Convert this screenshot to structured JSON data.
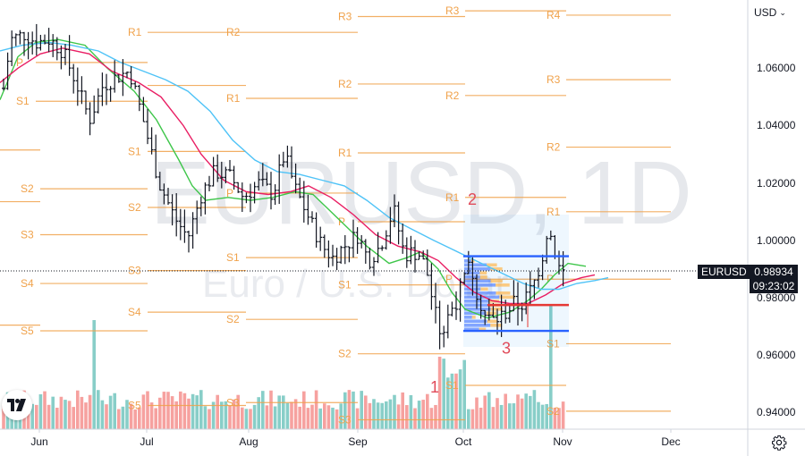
{
  "toolbar": {
    "currency": "USD"
  },
  "watermark": {
    "symbol": "EURUSD, 1D",
    "description": "Euro / U.S. Dollar"
  },
  "badges": {
    "symbol": "EURUSD",
    "last_price": "0.98934",
    "countdown": "09:23:02"
  },
  "colors": {
    "pivot": "#f0a24b",
    "bull": "#26a69a",
    "bear": "#ef5350",
    "ma_fast": "#3ec64a",
    "ma_mid": "#e91e63",
    "ma_slow": "#4fc3f7",
    "wave": "#e04b5a",
    "box_blue": "#2962ff",
    "box_red": "#e53935"
  },
  "icons": {
    "settings": "gear-icon",
    "logo": "tradingview-logo-icon",
    "currency_menu": "chevron-down-icon"
  },
  "chart_data": {
    "type": "candlestick",
    "symbol": "EURUSD",
    "interval": "1D",
    "ylim": [
      0.9325,
      1.0805
    ],
    "y_ticks": [
      "1.06000",
      "1.04000",
      "1.02000",
      "1.00000",
      "0.98000",
      "0.96000",
      "0.94000"
    ],
    "x_ticks": [
      "Jun",
      "Jul",
      "Aug",
      "Sep",
      "Oct",
      "Nov",
      "Dec"
    ],
    "last_price": 0.98934,
    "series": [
      {
        "name": "EMA fast",
        "color": "#3ec64a",
        "points": [
          [
            0,
            1.049
          ],
          [
            20,
            1.064
          ],
          [
            40,
            1.069
          ],
          [
            65,
            1.07
          ],
          [
            95,
            1.068
          ],
          [
            120,
            1.06
          ],
          [
            150,
            1.052
          ],
          [
            175,
            1.042
          ],
          [
            200,
            1.028
          ],
          [
            215,
            1.019
          ],
          [
            230,
            1.014
          ],
          [
            255,
            1.015
          ],
          [
            280,
            1.014
          ],
          [
            305,
            1.015
          ],
          [
            330,
            1.017
          ],
          [
            350,
            1.016
          ],
          [
            370,
            1.01
          ],
          [
            390,
            1.004
          ],
          [
            410,
            0.998
          ],
          [
            435,
            0.992
          ],
          [
            455,
            0.994
          ],
          [
            470,
            0.996
          ],
          [
            490,
            0.99
          ],
          [
            505,
            0.982
          ],
          [
            520,
            0.976
          ],
          [
            545,
            0.973
          ],
          [
            570,
            0.975
          ],
          [
            590,
            0.979
          ],
          [
            605,
            0.983
          ],
          [
            620,
            0.988
          ],
          [
            635,
            0.992
          ],
          [
            655,
            0.991
          ]
        ]
      },
      {
        "name": "EMA mid",
        "color": "#e91e63",
        "points": [
          [
            0,
            1.055
          ],
          [
            20,
            1.06
          ],
          [
            45,
            1.065
          ],
          [
            70,
            1.067
          ],
          [
            100,
            1.065
          ],
          [
            125,
            1.059
          ],
          [
            155,
            1.055
          ],
          [
            180,
            1.05
          ],
          [
            205,
            1.04
          ],
          [
            225,
            1.03
          ],
          [
            250,
            1.021
          ],
          [
            275,
            1.017
          ],
          [
            300,
            1.016
          ],
          [
            325,
            1.017
          ],
          [
            345,
            1.019
          ],
          [
            370,
            1.015
          ],
          [
            395,
            1.009
          ],
          [
            420,
            1.002
          ],
          [
            445,
            0.998
          ],
          [
            470,
            0.996
          ],
          [
            490,
            0.993
          ],
          [
            510,
            0.987
          ],
          [
            530,
            0.982
          ],
          [
            550,
            0.979
          ],
          [
            570,
            0.978
          ],
          [
            590,
            0.978
          ],
          [
            610,
            0.981
          ],
          [
            630,
            0.985
          ],
          [
            650,
            0.987
          ],
          [
            665,
            0.988
          ]
        ]
      },
      {
        "name": "EMA slow",
        "color": "#4fc3f7",
        "points": [
          [
            0,
            1.066
          ],
          [
            25,
            1.068
          ],
          [
            55,
            1.069
          ],
          [
            80,
            1.068
          ],
          [
            110,
            1.066
          ],
          [
            135,
            1.062
          ],
          [
            160,
            1.059
          ],
          [
            185,
            1.056
          ],
          [
            210,
            1.052
          ],
          [
            235,
            1.045
          ],
          [
            260,
            1.035
          ],
          [
            285,
            1.028
          ],
          [
            310,
            1.024
          ],
          [
            335,
            1.023
          ],
          [
            360,
            1.021
          ],
          [
            385,
            1.019
          ],
          [
            410,
            1.014
          ],
          [
            435,
            1.008
          ],
          [
            460,
            1.004
          ],
          [
            485,
            1.0
          ],
          [
            505,
            0.997
          ],
          [
            525,
            0.994
          ],
          [
            545,
            0.991
          ],
          [
            565,
            0.988
          ],
          [
            585,
            0.985
          ],
          [
            605,
            0.983
          ],
          [
            625,
            0.983
          ],
          [
            645,
            0.985
          ],
          [
            665,
            0.986
          ],
          [
            680,
            0.987
          ]
        ]
      }
    ],
    "pivot_levels": [
      {
        "label": "R1",
        "value": 1.0725,
        "x0": 165,
        "x1": 275
      },
      {
        "label": "R2",
        "value": 1.0725,
        "x0": 275,
        "x1": 400
      },
      {
        "label": "P",
        "value": 1.062,
        "x0": 40,
        "x1": 165
      },
      {
        "label": "S1",
        "value": 1.0485,
        "x0": 40,
        "x1": 165
      },
      {
        "label": "",
        "value": 1.054,
        "x0": 165,
        "x1": 275
      },
      {
        "label": "S1",
        "value": 1.031,
        "x0": 165,
        "x1": 275
      },
      {
        "label": "",
        "value": 1.0315,
        "x0": 0,
        "x1": 45
      },
      {
        "label": "S2",
        "value": 1.018,
        "x0": 45,
        "x1": 165
      },
      {
        "label": "",
        "value": 1.0135,
        "x0": 0,
        "x1": 45
      },
      {
        "label": "S2",
        "value": 1.0115,
        "x0": 165,
        "x1": 275
      },
      {
        "label": "S3",
        "value": 1.002,
        "x0": 45,
        "x1": 165
      },
      {
        "label": "S4",
        "value": 0.985,
        "x0": 45,
        "x1": 165
      },
      {
        "label": "S5",
        "value": 0.9685,
        "x0": 45,
        "x1": 165
      },
      {
        "label": "",
        "value": 0.9705,
        "x0": 0,
        "x1": 45
      },
      {
        "label": "R1",
        "value": 1.0495,
        "x0": 275,
        "x1": 400
      },
      {
        "label": "P",
        "value": 1.0165,
        "x0": 275,
        "x1": 400
      },
      {
        "label": "S1",
        "value": 0.994,
        "x0": 275,
        "x1": 400
      },
      {
        "label": "S3",
        "value": 0.9895,
        "x0": 165,
        "x1": 275
      },
      {
        "label": "S4",
        "value": 0.975,
        "x0": 165,
        "x1": 275
      },
      {
        "label": "S2",
        "value": 0.9725,
        "x0": 275,
        "x1": 400
      },
      {
        "label": "S5",
        "value": 0.9425,
        "x0": 165,
        "x1": 275
      },
      {
        "label": "S3",
        "value": 0.9435,
        "x0": 275,
        "x1": 400
      },
      {
        "label": "R3",
        "value": 1.078,
        "x0": 400,
        "x1": 520
      },
      {
        "label": "R2",
        "value": 1.0545,
        "x0": 400,
        "x1": 520
      },
      {
        "label": "R1",
        "value": 1.0305,
        "x0": 400,
        "x1": 520
      },
      {
        "label": "P",
        "value": 1.0065,
        "x0": 400,
        "x1": 520
      },
      {
        "label": "S1",
        "value": 0.9845,
        "x0": 400,
        "x1": 520
      },
      {
        "label": "S2",
        "value": 0.9605,
        "x0": 400,
        "x1": 520
      },
      {
        "label": "S3",
        "value": 0.9375,
        "x0": 400,
        "x1": 520
      },
      {
        "label": "R3",
        "value": 1.08,
        "x0": 520,
        "x1": 633
      },
      {
        "label": "R2",
        "value": 1.0505,
        "x0": 520,
        "x1": 633
      },
      {
        "label": "R1",
        "value": 1.015,
        "x0": 520,
        "x1": 633
      },
      {
        "label": "P",
        "value": 0.9865,
        "x0": 520,
        "x1": 633
      },
      {
        "label": "S1",
        "value": 0.9495,
        "x0": 520,
        "x1": 633
      },
      {
        "label": "R4",
        "value": 1.0785,
        "x0": 633,
        "x1": 750
      },
      {
        "label": "R3",
        "value": 1.056,
        "x0": 633,
        "x1": 750
      },
      {
        "label": "R2",
        "value": 1.0325,
        "x0": 633,
        "x1": 750
      },
      {
        "label": "R1",
        "value": 1.01,
        "x0": 633,
        "x1": 750
      },
      {
        "label": "P",
        "value": 0.9865,
        "x0": 633,
        "x1": 750
      },
      {
        "label": "S1",
        "value": 0.964,
        "x0": 633,
        "x1": 750
      },
      {
        "label": "S2",
        "value": 0.9405,
        "x0": 633,
        "x1": 750
      }
    ],
    "wave_labels": [
      {
        "label": "1",
        "x": 486,
        "value": 0.947
      },
      {
        "label": "2",
        "x": 528,
        "value": 1.0125
      },
      {
        "label": "3",
        "x": 566,
        "value": 0.9605
      }
    ],
    "annotations": {
      "blue_levels": [
        0.9945,
        0.9685
      ],
      "red_level": 0.9775
    }
  }
}
